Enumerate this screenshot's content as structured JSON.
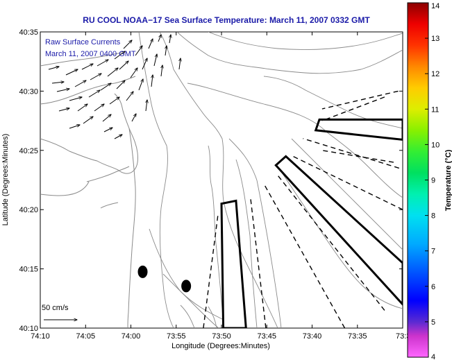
{
  "title": "RU COOL  NOAA−17  Sea Surface Temperature:  March 11, 2007 0332 GMT",
  "overlay": {
    "line1": "Raw Surface Currents",
    "line2": "March 11, 2007 0400 GMT"
  },
  "axes": {
    "xlabel": "Longitude (Degrees:Minutes)",
    "ylabel": "Latitude (Degrees:Minutes)",
    "x_ticks": [
      {
        "label": "74:10",
        "value": -74.1667
      },
      {
        "label": "74:05",
        "value": -74.0833
      },
      {
        "label": "74:00",
        "value": -74.0
      },
      {
        "label": "73:55",
        "value": -73.9167
      },
      {
        "label": "73:50",
        "value": -73.8333
      },
      {
        "label": "73:45",
        "value": -73.75
      },
      {
        "label": "73:40",
        "value": -73.6667
      },
      {
        "label": "73:35",
        "value": -73.5833
      },
      {
        "label": "73:3",
        "value": -73.5
      }
    ],
    "y_ticks": [
      {
        "label": "40:35",
        "value": 40.5833
      },
      {
        "label": "40:30",
        "value": 40.5
      },
      {
        "label": "40:25",
        "value": 40.4167
      },
      {
        "label": "40:20",
        "value": 40.3333
      },
      {
        "label": "40:15",
        "value": 40.25
      },
      {
        "label": "40:10",
        "value": 40.1667
      }
    ],
    "xlim": [
      -74.1667,
      -73.5
    ],
    "ylim": [
      40.1667,
      40.5833
    ]
  },
  "colorbar": {
    "label": "Temperature (°C)",
    "min": 4,
    "max": 14,
    "ticks": [
      "4",
      "5",
      "6",
      "7",
      "8",
      "9",
      "10",
      "11",
      "12",
      "13",
      "14"
    ]
  },
  "scale_bar": {
    "label": "50 cm/s"
  },
  "colors": {
    "title": "#1a1aa8",
    "contour": "#888888",
    "outline": "#000000"
  },
  "chart_data": {
    "type": "map",
    "markers": [
      {
        "lon": -73.9783,
        "lat": 40.2458
      },
      {
        "lon": -73.8983,
        "lat": 40.2258
      }
    ],
    "solid_boxes": [
      {
        "points": [
          [
            -73.83,
            40.1667
          ],
          [
            -73.8333,
            40.3417
          ],
          [
            -73.8067,
            40.3458
          ],
          [
            -73.7883,
            40.1667
          ]
        ]
      },
      {
        "points": [
          [
            -73.66,
            40.445
          ],
          [
            -73.6533,
            40.46
          ],
          [
            -73.5,
            40.46
          ],
          [
            -73.5,
            40.4317
          ]
        ]
      },
      {
        "points": [
          [
            -73.7333,
            40.3958
          ],
          [
            -73.715,
            40.4083
          ],
          [
            -73.5,
            40.2583
          ],
          [
            -73.5,
            40.2
          ]
        ]
      }
    ],
    "dashed_lines": [
      {
        "points": [
          [
            -73.8667,
            40.1667
          ],
          [
            -73.84,
            40.325
          ]
        ]
      },
      {
        "points": [
          [
            -73.7517,
            40.1667
          ],
          [
            -73.78,
            40.35
          ]
        ]
      },
      {
        "points": [
          [
            -73.6067,
            40.1667
          ],
          [
            -73.7533,
            40.3667
          ]
        ]
      },
      {
        "points": [
          [
            -73.5333,
            40.1917
          ],
          [
            -73.7317,
            40.3833
          ]
        ]
      },
      {
        "points": [
          [
            -73.5,
            40.3333
          ],
          [
            -73.7017,
            40.4083
          ]
        ]
      },
      {
        "points": [
          [
            -73.5067,
            40.3917
          ],
          [
            -73.6833,
            40.4333
          ]
        ]
      },
      {
        "points": [
          [
            -73.5167,
            40.4
          ],
          [
            -73.6483,
            40.4167
          ]
        ]
      },
      {
        "points": [
          [
            -73.5083,
            40.5
          ],
          [
            -73.6483,
            40.475
          ]
        ]
      },
      {
        "points": [
          [
            -73.5333,
            40.4917
          ],
          [
            -73.6483,
            40.4583
          ]
        ]
      }
    ]
  }
}
